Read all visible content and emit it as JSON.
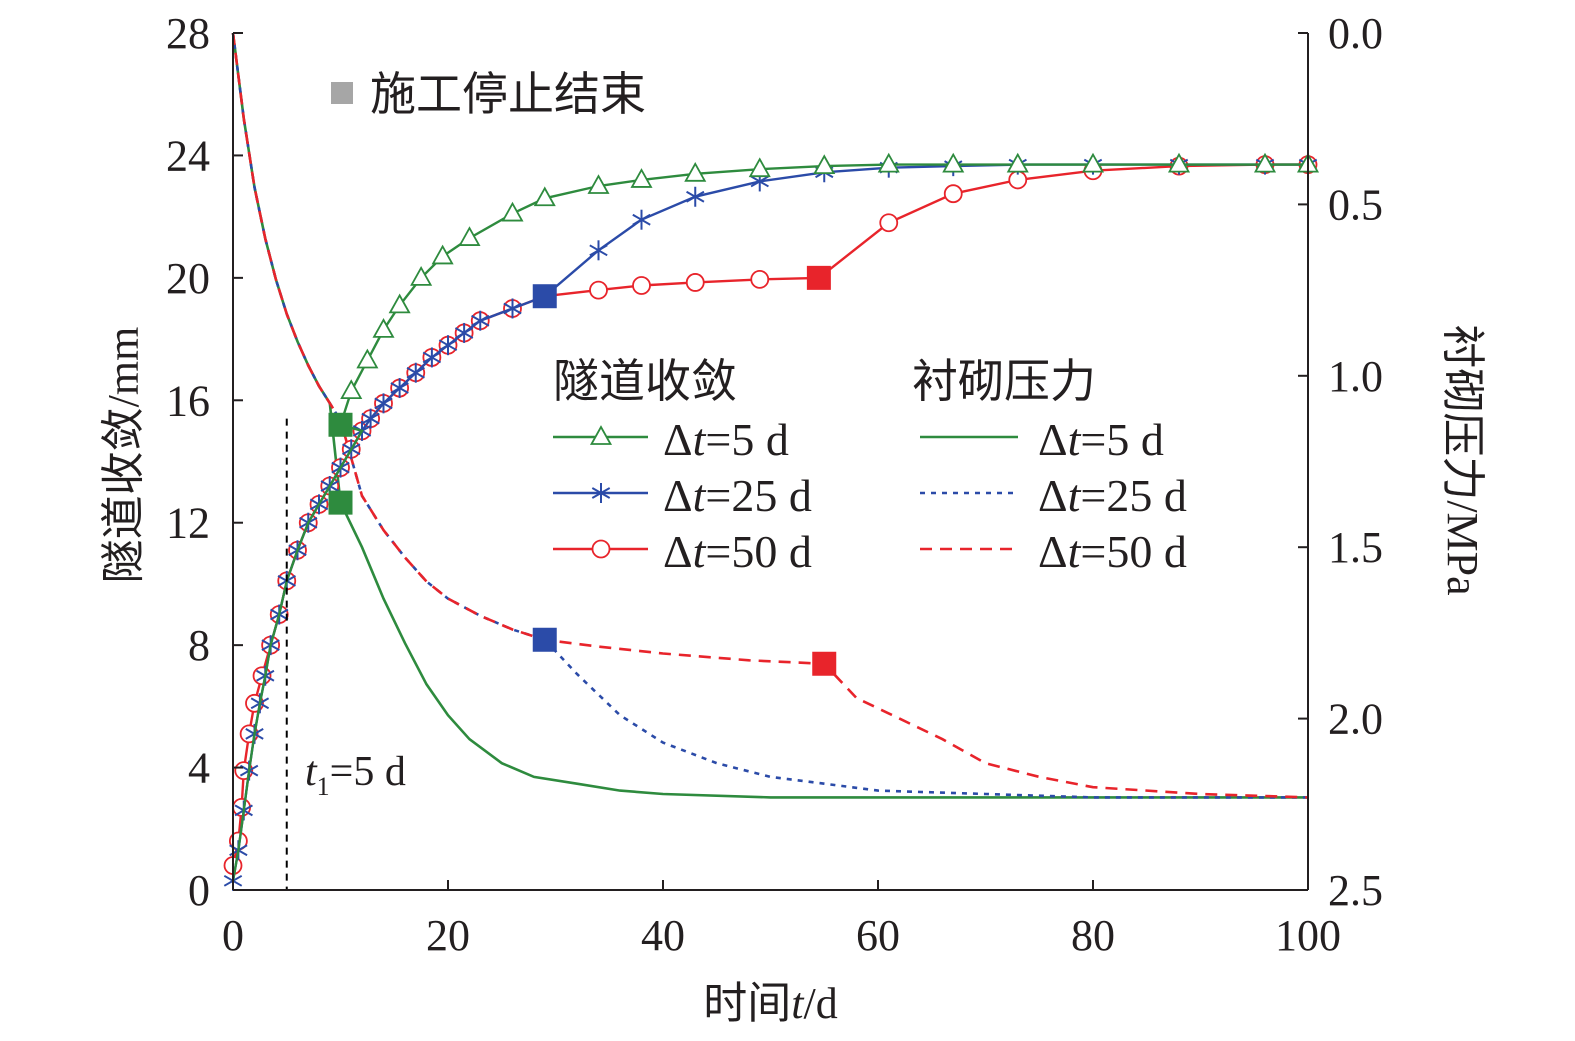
{
  "chart_data": {
    "type": "line",
    "x_axis": {
      "label_prefix": "时间",
      "label_var": "t",
      "label_suffix": "/d",
      "range": [
        0,
        100
      ],
      "ticks": [
        "0",
        "20",
        "40",
        "60",
        "80",
        "100"
      ]
    },
    "y_axis_left": {
      "label": "隧道收敛/mm",
      "range": [
        0,
        28
      ],
      "ticks": [
        "0",
        "4",
        "8",
        "12",
        "16",
        "20",
        "24",
        "28"
      ]
    },
    "y_axis_right": {
      "label": "衬砌压力/MPa",
      "range": [
        0,
        2.5
      ],
      "inverted": true,
      "ticks": [
        "0.0",
        "0.5",
        "1.0",
        "1.5",
        "2.0",
        "2.5"
      ]
    },
    "grid": false,
    "legend": {
      "placement": "center-right",
      "convergence_title": "隧道收敛",
      "pressure_title": "衬砌压力",
      "marker_note": "施工停止结束",
      "entries": [
        {
          "prefix": "Δ",
          "var": "t",
          "suffix": "=5 d"
        },
        {
          "prefix": "Δ",
          "var": "t",
          "suffix": "=25 d"
        },
        {
          "prefix": "Δ",
          "var": "t",
          "suffix": "=50 d"
        }
      ]
    },
    "annotation": {
      "var": "t",
      "sub": "1",
      "suffix": "=5 d",
      "x": 5
    },
    "colors": {
      "green": "#2e8b3e",
      "blue": "#2b4ba8",
      "red": "#e8242b",
      "gray": "#a6a6a6",
      "axis": "#231f20"
    },
    "convergence": [
      {
        "series": "Δt=5 d",
        "color": "green",
        "marker": "triangle",
        "stop_end": [
          10,
          15.2
        ],
        "points": [
          [
            0,
            0.3
          ],
          [
            0.5,
            1.3
          ],
          [
            1,
            2.6
          ],
          [
            1.5,
            3.9
          ],
          [
            2,
            5.1
          ],
          [
            2.5,
            6.1
          ],
          [
            3,
            7.0
          ],
          [
            3.5,
            8.0
          ],
          [
            4.3,
            9.0
          ],
          [
            5,
            10.1
          ],
          [
            6,
            11.1
          ],
          [
            7,
            12.0
          ],
          [
            8,
            12.6
          ],
          [
            9,
            13.2
          ],
          [
            10,
            13.8
          ],
          [
            11,
            14.4
          ],
          [
            12,
            15.0
          ],
          [
            10,
            15.2
          ],
          [
            11,
            16.3
          ],
          [
            12.5,
            17.3
          ],
          [
            14,
            18.3
          ],
          [
            15.5,
            19.1
          ],
          [
            17.5,
            20.0
          ],
          [
            19.5,
            20.7
          ],
          [
            22,
            21.3
          ],
          [
            26,
            22.1
          ],
          [
            29,
            22.6
          ],
          [
            34,
            23.0
          ],
          [
            38,
            23.2
          ],
          [
            43,
            23.4
          ],
          [
            49,
            23.55
          ],
          [
            55,
            23.65
          ],
          [
            61,
            23.7
          ],
          [
            67,
            23.7
          ],
          [
            73,
            23.7
          ],
          [
            80,
            23.7
          ],
          [
            88,
            23.7
          ],
          [
            96,
            23.7
          ],
          [
            100,
            23.7
          ]
        ],
        "marker_from": 18
      },
      {
        "series": "Δt=25 d",
        "color": "blue",
        "marker": "star",
        "stop_end": [
          29,
          19.4
        ],
        "points": [
          [
            0,
            0.3
          ],
          [
            0.5,
            1.3
          ],
          [
            1,
            2.6
          ],
          [
            1.5,
            3.9
          ],
          [
            2,
            5.1
          ],
          [
            2.5,
            6.1
          ],
          [
            3,
            7.0
          ],
          [
            3.5,
            8.0
          ],
          [
            4.3,
            9.0
          ],
          [
            5,
            10.1
          ],
          [
            6,
            11.1
          ],
          [
            7,
            12.0
          ],
          [
            8,
            12.6
          ],
          [
            9,
            13.2
          ],
          [
            10,
            13.8
          ],
          [
            11,
            14.4
          ],
          [
            12,
            15.0
          ],
          [
            12.8,
            15.4
          ],
          [
            14,
            15.9
          ],
          [
            15.5,
            16.4
          ],
          [
            17,
            16.9
          ],
          [
            18.5,
            17.4
          ],
          [
            20,
            17.8
          ],
          [
            21.5,
            18.2
          ],
          [
            23,
            18.6
          ],
          [
            26,
            19.0
          ],
          [
            29,
            19.4
          ],
          [
            34,
            20.9
          ],
          [
            38,
            21.9
          ],
          [
            43,
            22.65
          ],
          [
            49,
            23.15
          ],
          [
            55,
            23.45
          ],
          [
            61,
            23.6
          ],
          [
            67,
            23.65
          ],
          [
            73,
            23.7
          ],
          [
            80,
            23.7
          ],
          [
            88,
            23.7
          ],
          [
            96,
            23.7
          ],
          [
            100,
            23.7
          ]
        ],
        "marker_from": 0
      },
      {
        "series": "Δt=50 d",
        "color": "red",
        "marker": "circle",
        "stop_end": [
          54.5,
          20.0
        ],
        "points": [
          [
            0,
            0.8
          ],
          [
            0.5,
            1.6
          ],
          [
            0.8,
            2.7
          ],
          [
            1,
            3.9
          ],
          [
            1.5,
            5.1
          ],
          [
            2,
            6.1
          ],
          [
            2.7,
            7.0
          ],
          [
            3.5,
            8.0
          ],
          [
            4.3,
            9.0
          ],
          [
            5,
            10.1
          ],
          [
            6,
            11.1
          ],
          [
            7,
            12.0
          ],
          [
            8,
            12.6
          ],
          [
            9,
            13.2
          ],
          [
            10,
            13.8
          ],
          [
            11,
            14.4
          ],
          [
            12,
            15.0
          ],
          [
            12.8,
            15.4
          ],
          [
            14,
            15.9
          ],
          [
            15.5,
            16.4
          ],
          [
            17,
            16.9
          ],
          [
            18.5,
            17.4
          ],
          [
            20,
            17.8
          ],
          [
            21.5,
            18.2
          ],
          [
            23,
            18.6
          ],
          [
            26,
            19.0
          ],
          [
            29,
            19.4
          ],
          [
            34,
            19.6
          ],
          [
            38,
            19.75
          ],
          [
            43,
            19.85
          ],
          [
            49,
            19.95
          ],
          [
            54.5,
            20.0
          ],
          [
            61,
            21.8
          ],
          [
            67,
            22.75
          ],
          [
            73,
            23.2
          ],
          [
            80,
            23.5
          ],
          [
            88,
            23.65
          ],
          [
            96,
            23.7
          ],
          [
            100,
            23.7
          ]
        ],
        "marker_from": 0
      }
    ],
    "pressure": [
      {
        "series": "Δt=5 d",
        "color": "green",
        "dash": "",
        "stop_end": [
          10,
          1.37
        ],
        "points": [
          [
            0,
            0.0
          ],
          [
            1,
            0.25
          ],
          [
            2,
            0.45
          ],
          [
            3,
            0.6
          ],
          [
            4,
            0.72
          ],
          [
            5,
            0.82
          ],
          [
            6,
            0.9
          ],
          [
            7,
            0.97
          ],
          [
            8,
            1.03
          ],
          [
            9,
            1.08
          ],
          [
            10,
            1.37
          ],
          [
            12,
            1.5
          ],
          [
            14,
            1.65
          ],
          [
            16,
            1.78
          ],
          [
            18,
            1.9
          ],
          [
            20,
            1.99
          ],
          [
            22,
            2.06
          ],
          [
            25,
            2.13
          ],
          [
            28,
            2.17
          ],
          [
            32,
            2.19
          ],
          [
            36,
            2.21
          ],
          [
            40,
            2.22
          ],
          [
            50,
            2.23
          ],
          [
            60,
            2.23
          ],
          [
            70,
            2.23
          ],
          [
            80,
            2.23
          ],
          [
            90,
            2.23
          ],
          [
            100,
            2.23
          ]
        ]
      },
      {
        "series": "Δt=25 d",
        "color": "blue",
        "dash": "5,6",
        "stop_end": [
          29,
          1.77
        ],
        "points": [
          [
            0,
            0.0
          ],
          [
            1,
            0.25
          ],
          [
            2,
            0.45
          ],
          [
            3,
            0.6
          ],
          [
            4,
            0.72
          ],
          [
            5,
            0.82
          ],
          [
            6,
            0.9
          ],
          [
            7,
            0.97
          ],
          [
            8,
            1.03
          ],
          [
            9,
            1.08
          ],
          [
            10,
            1.13
          ],
          [
            12,
            1.35
          ],
          [
            14,
            1.45
          ],
          [
            16,
            1.53
          ],
          [
            18,
            1.6
          ],
          [
            20,
            1.65
          ],
          [
            23,
            1.7
          ],
          [
            26,
            1.74
          ],
          [
            29,
            1.77
          ],
          [
            32,
            1.87
          ],
          [
            36,
            1.99
          ],
          [
            40,
            2.07
          ],
          [
            45,
            2.13
          ],
          [
            50,
            2.17
          ],
          [
            55,
            2.19
          ],
          [
            60,
            2.21
          ],
          [
            70,
            2.22
          ],
          [
            80,
            2.23
          ],
          [
            90,
            2.23
          ],
          [
            100,
            2.23
          ]
        ]
      },
      {
        "series": "Δt=50 d",
        "color": "red",
        "dash": "12,8",
        "stop_end": [
          55,
          1.84
        ],
        "points": [
          [
            0,
            0.0
          ],
          [
            1,
            0.25
          ],
          [
            2,
            0.45
          ],
          [
            3,
            0.6
          ],
          [
            4,
            0.72
          ],
          [
            5,
            0.82
          ],
          [
            6,
            0.9
          ],
          [
            7,
            0.97
          ],
          [
            8,
            1.03
          ],
          [
            9,
            1.08
          ],
          [
            10,
            1.13
          ],
          [
            12,
            1.35
          ],
          [
            14,
            1.45
          ],
          [
            16,
            1.53
          ],
          [
            18,
            1.6
          ],
          [
            20,
            1.65
          ],
          [
            23,
            1.7
          ],
          [
            26,
            1.74
          ],
          [
            29,
            1.77
          ],
          [
            34,
            1.79
          ],
          [
            40,
            1.81
          ],
          [
            48,
            1.83
          ],
          [
            55,
            1.84
          ],
          [
            58,
            1.94
          ],
          [
            62,
            2.0
          ],
          [
            66,
            2.06
          ],
          [
            70,
            2.13
          ],
          [
            75,
            2.17
          ],
          [
            80,
            2.2
          ],
          [
            90,
            2.22
          ],
          [
            100,
            2.23
          ]
        ]
      }
    ]
  }
}
